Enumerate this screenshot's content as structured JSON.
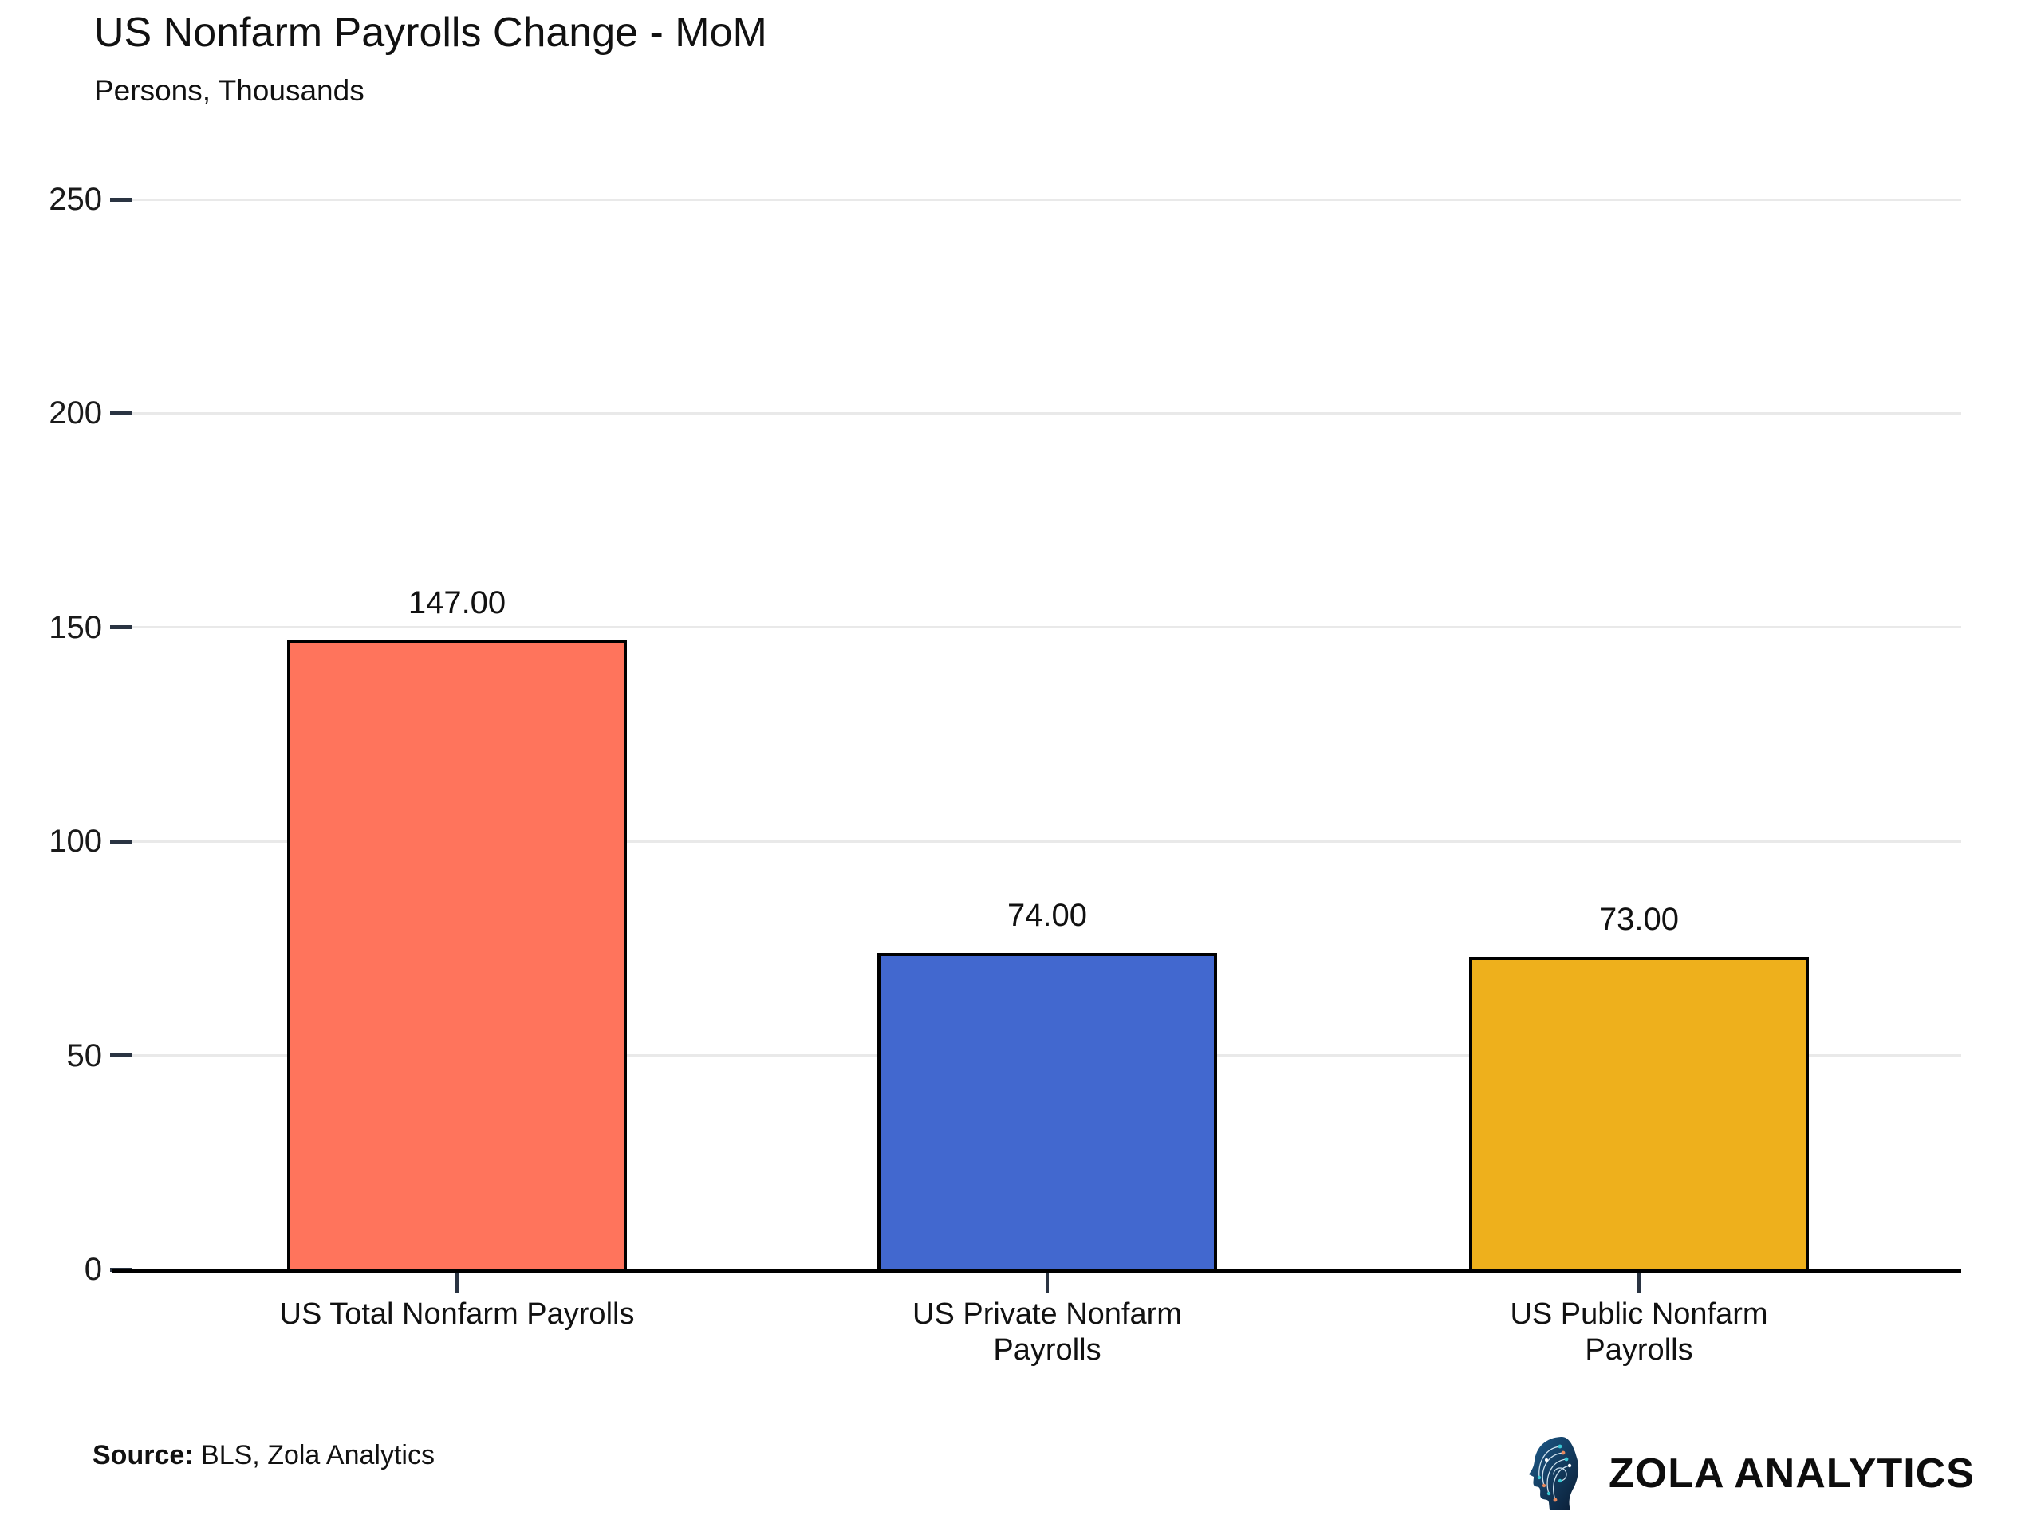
{
  "header": {
    "title": "US Nonfarm Payrolls Change - MoM",
    "subtitle": "Persons, Thousands"
  },
  "chart_data": {
    "type": "bar",
    "title": "US Nonfarm Payrolls Change - MoM",
    "subtitle": "Persons, Thousands",
    "ylabel": "",
    "xlabel": "",
    "categories": [
      "US Total Nonfarm Payrolls",
      "US Private Nonfarm Payrolls",
      "US Public Nonfarm Payrolls"
    ],
    "category_lines": [
      [
        "US Total Nonfarm Payrolls"
      ],
      [
        "US Private Nonfarm",
        "Payrolls"
      ],
      [
        "US Public Nonfarm",
        "Payrolls"
      ]
    ],
    "values": [
      147,
      74,
      73
    ],
    "value_labels": [
      "147.00",
      "74.00",
      "73.00"
    ],
    "bar_colors": [
      "#FF745C",
      "#4268CF",
      "#EEB01C"
    ],
    "bar_border_color": "#000000",
    "ylim": [
      0,
      250
    ],
    "yticks": [
      0,
      50,
      100,
      150,
      200,
      250
    ],
    "grid": true,
    "legend_position": "none",
    "gridline_color": "#E9E9E9",
    "axis_color": "#000000",
    "tick_color": "#2A3442"
  },
  "footer": {
    "source_label": "Source:",
    "source_text": " BLS, Zola Analytics",
    "brand": "ZOLA ANALYTICS",
    "logo_icon": "circuit-head-icon"
  }
}
